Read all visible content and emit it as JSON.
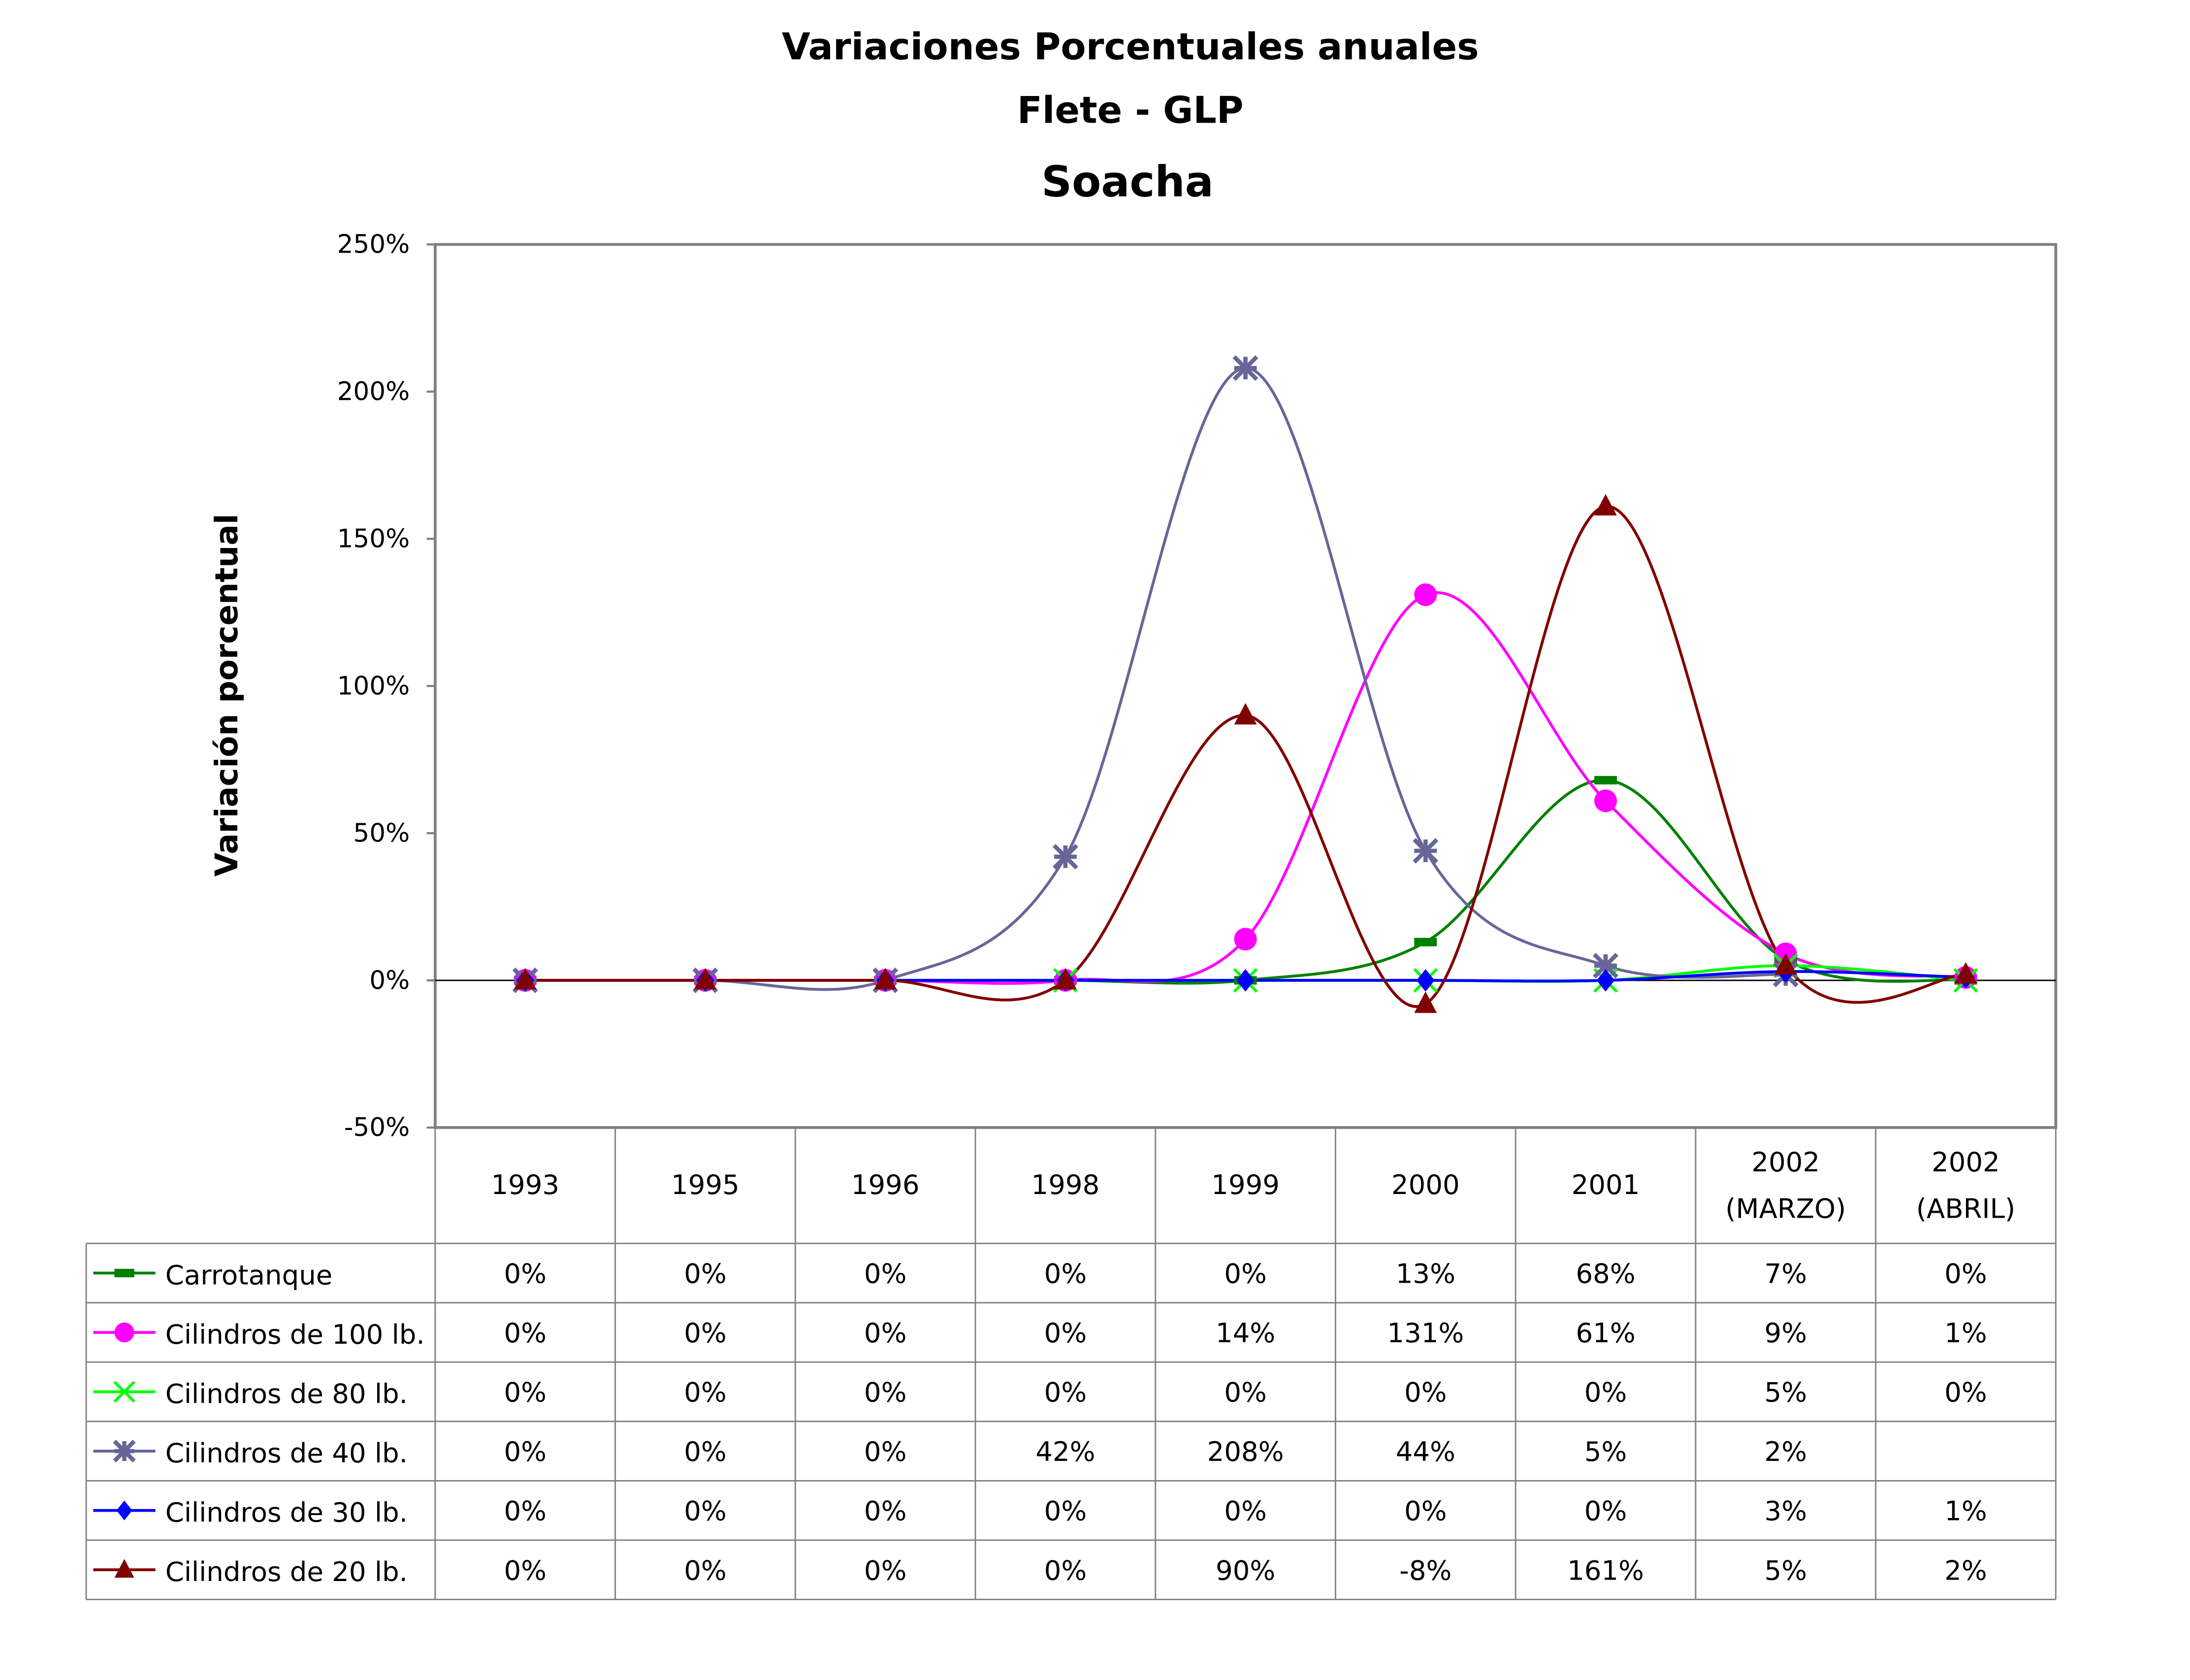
{
  "chart_data": {
    "type": "line",
    "title": "Variaciones Porcentuales anuales",
    "subtitle": "Flete - GLP",
    "subtitle2": "Soacha",
    "xlabel": "",
    "ylabel": "Variación porcentual",
    "ylim": [
      -50,
      250
    ],
    "yticks": [
      -50,
      0,
      50,
      100,
      150,
      200,
      250
    ],
    "ytick_labels": [
      "-50%",
      "0%",
      "50%",
      "100%",
      "150%",
      "200%",
      "250%"
    ],
    "grid": false,
    "legend": "data-table-below",
    "smooth": true,
    "categories": [
      [
        "1993"
      ],
      [
        "1995"
      ],
      [
        "1996"
      ],
      [
        "1998"
      ],
      [
        "1999"
      ],
      [
        "2000"
      ],
      [
        "2001"
      ],
      [
        "2002",
        "(MARZO)"
      ],
      [
        "2002",
        "(ABRIL)"
      ]
    ],
    "series": [
      {
        "name": "Carrotanque",
        "color": "#008000",
        "marker": "dash",
        "values": [
          0,
          0,
          0,
          0,
          0,
          13,
          68,
          7,
          0
        ],
        "labels": [
          "0%",
          "0%",
          "0%",
          "0%",
          "0%",
          "13%",
          "68%",
          "7%",
          "0%"
        ]
      },
      {
        "name": "Cilindros de 100 lb.",
        "color": "#FF00FF",
        "marker": "circle",
        "values": [
          0,
          0,
          0,
          0,
          14,
          131,
          61,
          9,
          1
        ],
        "labels": [
          "0%",
          "0%",
          "0%",
          "0%",
          "14%",
          "131%",
          "61%",
          "9%",
          "1%"
        ]
      },
      {
        "name": "Cilindros de 80 lb.",
        "color": "#00FF00",
        "marker": "x",
        "values": [
          0,
          0,
          0,
          0,
          0,
          0,
          0,
          5,
          0
        ],
        "labels": [
          "0%",
          "0%",
          "0%",
          "0%",
          "0%",
          "0%",
          "0%",
          "5%",
          "0%"
        ]
      },
      {
        "name": "Cilindros de 40 lb.",
        "color": "#666699",
        "marker": "star",
        "values": [
          0,
          0,
          0,
          42,
          208,
          44,
          5,
          2,
          null
        ],
        "labels": [
          "0%",
          "0%",
          "0%",
          "42%",
          "208%",
          "44%",
          "5%",
          "2%",
          ""
        ]
      },
      {
        "name": "Cilindros de 30 lb.",
        "color": "#0000FF",
        "marker": "diamond",
        "values": [
          0,
          0,
          0,
          0,
          0,
          0,
          0,
          3,
          1
        ],
        "labels": [
          "0%",
          "0%",
          "0%",
          "0%",
          "0%",
          "0%",
          "0%",
          "3%",
          "1%"
        ]
      },
      {
        "name": "Cilindros de 20 lb.",
        "color": "#800000",
        "marker": "triangle",
        "values": [
          0,
          0,
          0,
          0,
          90,
          -8,
          161,
          5,
          2
        ],
        "labels": [
          "0%",
          "0%",
          "0%",
          "0%",
          "90%",
          "-8%",
          "161%",
          "5%",
          "2%"
        ]
      }
    ]
  }
}
